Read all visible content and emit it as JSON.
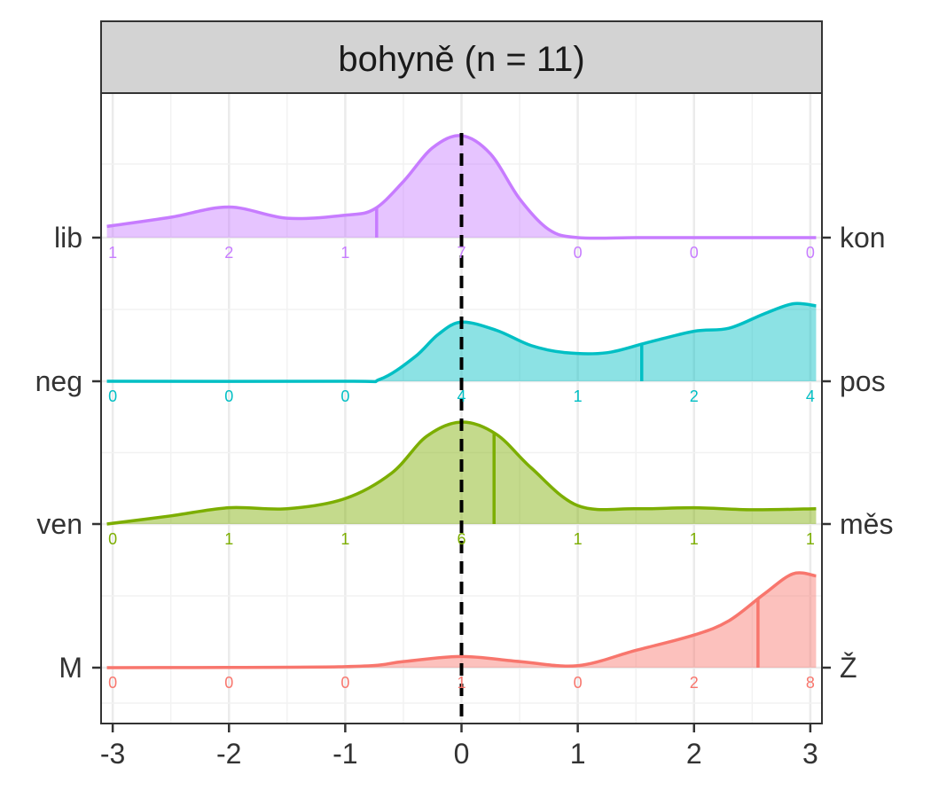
{
  "chart_data": {
    "type": "ridgeline",
    "title": "bohyně (n = 11)",
    "x_ticks": [
      -3,
      -2,
      -1,
      0,
      1,
      2,
      3
    ],
    "x_tick_labels": [
      "-3",
      "-2",
      "-1",
      "0",
      "1",
      "2",
      "3"
    ],
    "xlim": [
      -3.1,
      3.1
    ],
    "reference_line_x": 0,
    "grid": true,
    "rows": [
      {
        "left_label": "lib",
        "right_label": "kon",
        "color": "#C77CFF",
        "counts": [
          "1",
          "2",
          "1",
          "7",
          "0",
          "0",
          "0"
        ],
        "mean": -0.73,
        "density_x": [
          -3.05,
          -2.5,
          -2.0,
          -1.5,
          -1.0,
          -0.75,
          -0.5,
          -0.25,
          0.0,
          0.25,
          0.5,
          0.75,
          1.0,
          1.5,
          2.0,
          3.05
        ],
        "density_y": [
          0.11,
          0.2,
          0.3,
          0.19,
          0.22,
          0.28,
          0.55,
          0.88,
          1.0,
          0.82,
          0.38,
          0.08,
          0.0,
          0.0,
          0.0,
          0.0
        ]
      },
      {
        "left_label": "neg",
        "right_label": "pos",
        "color": "#00BFC4",
        "counts": [
          "0",
          "0",
          "0",
          "4",
          "1",
          "2",
          "4"
        ],
        "mean": 1.55,
        "density_x": [
          -3.05,
          -1.0,
          -0.7,
          -0.4,
          -0.2,
          0.0,
          0.3,
          0.6,
          0.9,
          1.25,
          1.6,
          2.0,
          2.3,
          2.6,
          2.85,
          3.05
        ],
        "density_y": [
          0.0,
          0.0,
          0.02,
          0.24,
          0.46,
          0.58,
          0.5,
          0.35,
          0.28,
          0.28,
          0.38,
          0.49,
          0.52,
          0.66,
          0.76,
          0.74
        ]
      },
      {
        "left_label": "ven",
        "right_label": "měs",
        "color": "#7CAE00",
        "counts": [
          "0",
          "1",
          "1",
          "6",
          "1",
          "1",
          "1"
        ],
        "mean": 0.28,
        "density_x": [
          -3.05,
          -2.5,
          -2.0,
          -1.5,
          -1.0,
          -0.6,
          -0.3,
          0.0,
          0.3,
          0.6,
          1.0,
          1.5,
          2.0,
          2.5,
          3.05
        ],
        "density_y": [
          0.0,
          0.08,
          0.16,
          0.15,
          0.25,
          0.5,
          0.86,
          1.0,
          0.88,
          0.55,
          0.18,
          0.15,
          0.16,
          0.14,
          0.15
        ]
      },
      {
        "left_label": "M",
        "right_label": "Ž",
        "color": "#F8766D",
        "counts": [
          "0",
          "0",
          "0",
          "1",
          "0",
          "2",
          "8"
        ],
        "mean": 2.55,
        "density_x": [
          -3.05,
          -1.0,
          -0.5,
          0.0,
          0.5,
          1.0,
          1.5,
          2.0,
          2.3,
          2.6,
          2.85,
          3.05
        ],
        "density_y": [
          0.0,
          0.01,
          0.06,
          0.11,
          0.06,
          0.02,
          0.17,
          0.32,
          0.46,
          0.72,
          0.92,
          0.9
        ]
      }
    ]
  }
}
